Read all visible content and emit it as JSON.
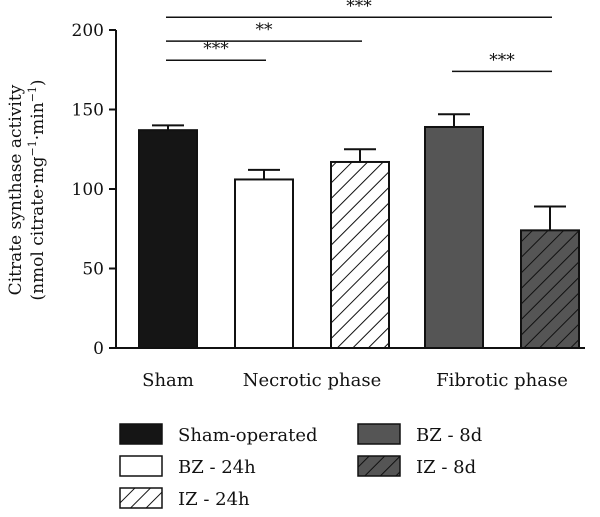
{
  "chart_data": {
    "type": "bar",
    "title": "",
    "ylabel_line1": "Citrate synthase activity",
    "ylabel_line2_parts": [
      "(nmol citrate·mg",
      "−1",
      "·min",
      "−1",
      ")"
    ],
    "ylim": [
      0,
      200
    ],
    "yticks": [
      "0",
      "50",
      "100",
      "150",
      "200"
    ],
    "ytick_values": [
      0,
      50,
      100,
      150,
      200
    ],
    "group_labels": [
      {
        "label": "Sham",
        "bars": [
          0
        ]
      },
      {
        "label": "Necrotic phase",
        "bars": [
          1,
          2
        ]
      },
      {
        "label": "Fibrotic phase",
        "bars": [
          3,
          4
        ]
      }
    ],
    "series": [
      {
        "name": "Sham-operated",
        "value": 137,
        "error": 3,
        "fill": "#151515",
        "pattern": "none"
      },
      {
        "name": "BZ - 24h",
        "value": 106,
        "error": 6,
        "fill": "#ffffff",
        "pattern": "none"
      },
      {
        "name": "IZ - 24h",
        "value": 117,
        "error": 8,
        "fill": "#ffffff",
        "pattern": "hatch-light"
      },
      {
        "name": "BZ - 8d",
        "value": 139,
        "error": 8,
        "fill": "#555555",
        "pattern": "none"
      },
      {
        "name": "IZ - 8d",
        "value": 74,
        "error": 15,
        "fill": "#555555",
        "pattern": "hatch-dark"
      }
    ],
    "significance": [
      {
        "from": 0,
        "to": 1,
        "label": "***",
        "y": 181
      },
      {
        "from": 0,
        "to": 2,
        "label": "**",
        "y": 193
      },
      {
        "from": 0,
        "to": 4,
        "label": "***",
        "y": 208
      },
      {
        "from": 3,
        "to": 4,
        "label": "***",
        "y": 174
      }
    ],
    "legend": [
      {
        "series": 0,
        "col": 0,
        "row": 0
      },
      {
        "series": 1,
        "col": 0,
        "row": 1
      },
      {
        "series": 2,
        "col": 0,
        "row": 2
      },
      {
        "series": 3,
        "col": 1,
        "row": 0
      },
      {
        "series": 4,
        "col": 1,
        "row": 1
      }
    ],
    "legend_placement": "bottom",
    "grid": false
  }
}
